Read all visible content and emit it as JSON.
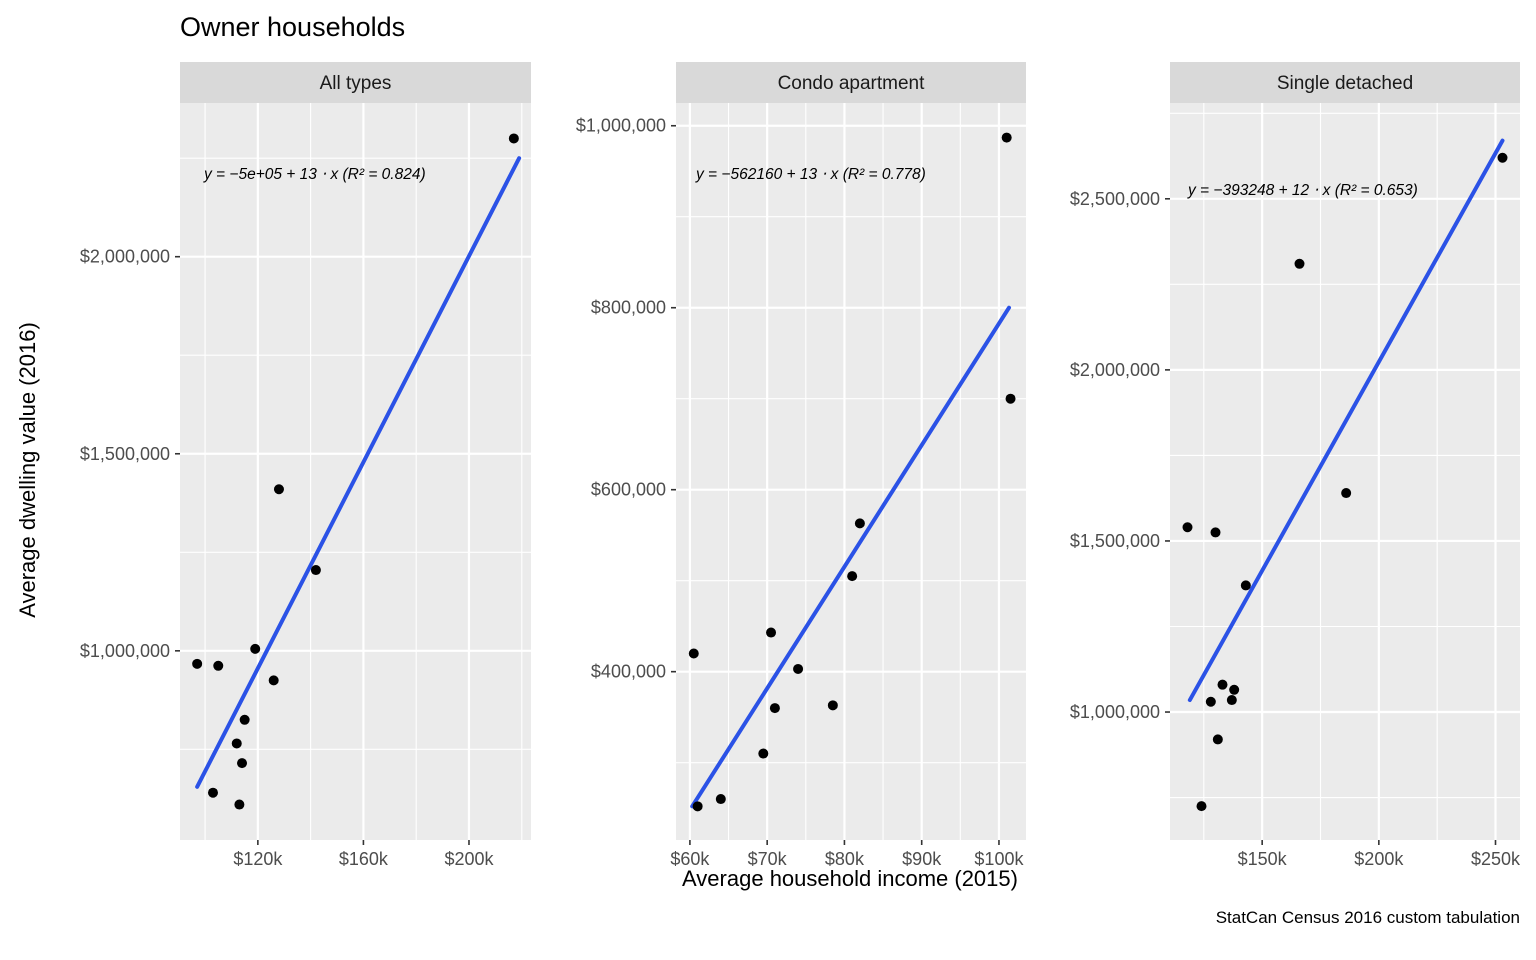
{
  "chart_data": {
    "type": "scatter",
    "title": "Owner households",
    "xlabel": "Average household income (2015)",
    "ylabel": "Average dwelling value (2016)",
    "caption": "StatCan Census 2016 custom tabulation",
    "legend": "none",
    "style": {
      "panel_bg": "#EBEBEB",
      "strip_bg": "#D9D9D9",
      "grid": "#FFFFFF",
      "point": "#000000",
      "line": "#2B52E6",
      "tick_text": "#4D4D4D",
      "axis_tick": "#333333",
      "strip_text": "#1A1A1A"
    },
    "facets": [
      {
        "label": "All types",
        "equation": "y = −5e+05 + 13 ⋅ x  (R² = 0.824)",
        "eq_offset": [
          24,
          76
        ],
        "xlim": [
          90500,
          223500
        ],
        "ylim": [
          520000,
          2390000
        ],
        "xticks": [
          {
            "value": 120000,
            "label": "$120k"
          },
          {
            "value": 160000,
            "label": "$160k"
          },
          {
            "value": 200000,
            "label": "$200k"
          }
        ],
        "yticks": [
          {
            "value": 1000000,
            "label": "$1,000,000"
          },
          {
            "value": 1500000,
            "label": "$1,500,000"
          },
          {
            "value": 2000000,
            "label": "$2,000,000"
          }
        ],
        "points": [
          [
            217000,
            2300000
          ],
          [
            128000,
            1410000
          ],
          [
            142000,
            1205000
          ],
          [
            119000,
            1005000
          ],
          [
            97000,
            967000
          ],
          [
            105000,
            962000
          ],
          [
            126000,
            925000
          ],
          [
            115000,
            825000
          ],
          [
            112000,
            765000
          ],
          [
            114000,
            715000
          ],
          [
            103000,
            640000
          ],
          [
            113000,
            610000
          ]
        ],
        "regression": {
          "x1": 97000,
          "y1": 655000,
          "x2": 219000,
          "y2": 2250000
        }
      },
      {
        "label": "Condo apartment",
        "equation": "y = −562160 + 13 ⋅ x  (R² = 0.778)",
        "eq_offset": [
          20,
          76
        ],
        "xlim": [
          58200,
          103500
        ],
        "ylim": [
          215000,
          1025000
        ],
        "xticks": [
          {
            "value": 60000,
            "label": "$60k"
          },
          {
            "value": 70000,
            "label": "$70k"
          },
          {
            "value": 80000,
            "label": "$80k"
          },
          {
            "value": 90000,
            "label": "$90k"
          },
          {
            "value": 100000,
            "label": "$100k"
          }
        ],
        "yticks": [
          {
            "value": 400000,
            "label": "$400,000"
          },
          {
            "value": 600000,
            "label": "$600,000"
          },
          {
            "value": 800000,
            "label": "$800,000"
          },
          {
            "value": 1000000,
            "label": "$1,000,000"
          }
        ],
        "points": [
          [
            101000,
            987000
          ],
          [
            101500,
            700000
          ],
          [
            82000,
            563000
          ],
          [
            81000,
            505000
          ],
          [
            70500,
            443000
          ],
          [
            60500,
            420000
          ],
          [
            74000,
            403000
          ],
          [
            71000,
            360000
          ],
          [
            78500,
            363000
          ],
          [
            69500,
            310000
          ],
          [
            64000,
            260000
          ],
          [
            61000,
            252000
          ]
        ],
        "regression": {
          "x1": 60300,
          "y1": 252000,
          "x2": 101300,
          "y2": 800000
        }
      },
      {
        "label": "Single detached",
        "equation": "y = −393248 + 12 ⋅ x  (R² = 0.653)",
        "eq_offset": [
          18,
          92
        ],
        "xlim": [
          110500,
          260500
        ],
        "ylim": [
          626000,
          2780000
        ],
        "xticks": [
          {
            "value": 150000,
            "label": "$150k"
          },
          {
            "value": 200000,
            "label": "$200k"
          },
          {
            "value": 250000,
            "label": "$250k"
          }
        ],
        "yticks": [
          {
            "value": 1000000,
            "label": "$1,000,000"
          },
          {
            "value": 1500000,
            "label": "$1,500,000"
          },
          {
            "value": 2000000,
            "label": "$2,000,000"
          },
          {
            "value": 2500000,
            "label": "$2,500,000"
          }
        ],
        "points": [
          [
            253000,
            2620000
          ],
          [
            166000,
            2310000
          ],
          [
            186000,
            1640000
          ],
          [
            118000,
            1540000
          ],
          [
            130000,
            1525000
          ],
          [
            143000,
            1370000
          ],
          [
            133000,
            1080000
          ],
          [
            138000,
            1065000
          ],
          [
            128000,
            1030000
          ],
          [
            137000,
            1035000
          ],
          [
            131000,
            920000
          ],
          [
            124000,
            725000
          ]
        ],
        "regression": {
          "x1": 119000,
          "y1": 1035000,
          "x2": 253000,
          "y2": 2670000
        }
      }
    ]
  }
}
